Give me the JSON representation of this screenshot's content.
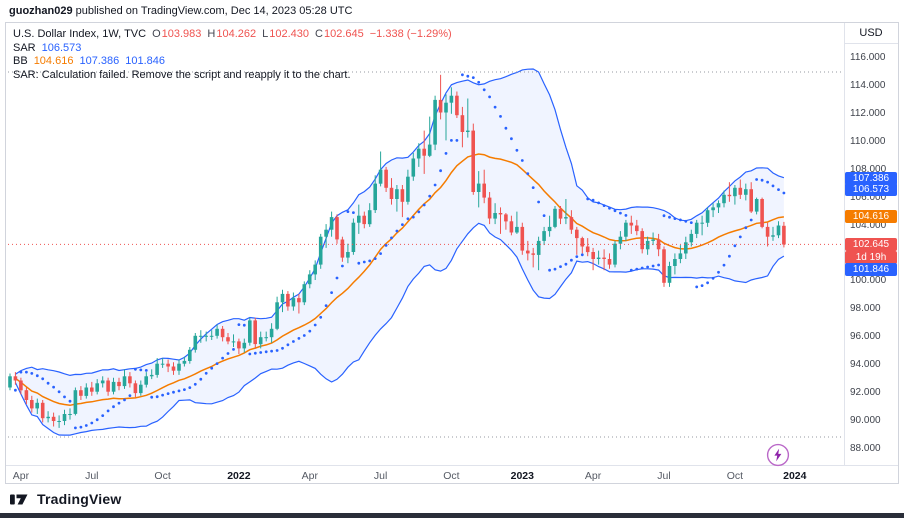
{
  "header": {
    "author": "guozhan029",
    "rest": " published on TradingView.com, Dec 14, 2023 05:28 UTC"
  },
  "legend": {
    "symbol": "U.S. Dollar Index, 1W, TVC",
    "o_label": "O",
    "o": "103.983",
    "h_label": "H",
    "h": "104.262",
    "l_label": "L",
    "l": "102.430",
    "c_label": "C",
    "c": "102.645",
    "change": "−1.338 (−1.29%)",
    "sar_label": "SAR",
    "sar_value": "106.573",
    "bb_label": "BB",
    "bb_basis": "104.616",
    "bb_upper": "107.386",
    "bb_lower": "101.846",
    "error": "SAR: Calculation failed. Remove the script and reapply it to the chart."
  },
  "price_axis": {
    "currency": "USD",
    "ticks": [
      "116.000",
      "114.000",
      "112.000",
      "110.000",
      "108.000",
      "106.000",
      "104.000",
      "102.000",
      "100.000",
      "98.000",
      "96.000",
      "94.000",
      "92.000",
      "90.000",
      "88.000"
    ],
    "badges": [
      {
        "text": "107.386",
        "price": 107.386,
        "color": "#2962ff"
      },
      {
        "text": "106.573",
        "price": 106.573,
        "color": "#2962ff"
      },
      {
        "text": "104.616",
        "price": 104.616,
        "color": "#f57c00"
      },
      {
        "text": "102.645",
        "price": 102.645,
        "color": "#ef5350"
      },
      {
        "text": "1d 19h",
        "attach": "below",
        "color": "#ef5350"
      },
      {
        "text": "101.846",
        "price": 101.846,
        "color": "#2962ff",
        "nudge": 14
      }
    ]
  },
  "footer": {
    "brand": "TradingView"
  },
  "colors": {
    "up": "#26a69a",
    "down": "#ef5350",
    "band": "#2962ff",
    "band_fill_opacity": 0.07,
    "basis": "#f57c00",
    "sar_dots": "#2962ff",
    "current_line": "#ef5350",
    "guide": "#9598a1"
  },
  "chart_data": {
    "type": "candlestick",
    "title": "U.S. Dollar Index, 1W, TVC",
    "symbol": "U.S. Dollar Index",
    "timeframe": "1W",
    "exchange": "TVC",
    "currency": "USD",
    "ylim": [
      88,
      116
    ],
    "current_price": 102.645,
    "countdown": "1d 19h",
    "indicators": {
      "bollinger": {
        "period": 20,
        "stddev": 2,
        "basis_last": 104.616,
        "upper_last": 107.386,
        "lower_last": 101.846
      },
      "sar": {
        "last": 106.573,
        "status": "calculation failed"
      }
    },
    "dotted_guides": [
      115.0,
      88.85
    ],
    "x_labels": [
      {
        "t": "Apr",
        "i": 2
      },
      {
        "t": "Jul",
        "i": 15
      },
      {
        "t": "Oct",
        "i": 28
      },
      {
        "t": "2022",
        "i": 42,
        "bold": true
      },
      {
        "t": "Apr",
        "i": 55
      },
      {
        "t": "Jul",
        "i": 68
      },
      {
        "t": "Oct",
        "i": 81
      },
      {
        "t": "2023",
        "i": 94,
        "bold": true
      },
      {
        "t": "Apr",
        "i": 107
      },
      {
        "t": "Jul",
        "i": 120
      },
      {
        "t": "Oct",
        "i": 133
      },
      {
        "t": "2024",
        "i": 144,
        "bold": true
      }
    ],
    "ohlc": [
      [
        92.4,
        93.4,
        92.2,
        93.2
      ],
      [
        93.2,
        93.5,
        92.6,
        92.9
      ],
      [
        92.9,
        93.1,
        91.9,
        92.2
      ],
      [
        92.2,
        92.4,
        91.2,
        91.5
      ],
      [
        91.5,
        91.8,
        90.6,
        90.9
      ],
      [
        90.9,
        91.6,
        90.5,
        91.3
      ],
      [
        91.3,
        91.5,
        89.9,
        90.2
      ],
      [
        90.2,
        90.7,
        89.9,
        90.3
      ],
      [
        90.3,
        90.6,
        89.6,
        90.0
      ],
      [
        90.0,
        90.4,
        89.5,
        90.0
      ],
      [
        90.0,
        90.8,
        89.7,
        90.5
      ],
      [
        90.5,
        90.9,
        90.1,
        90.5
      ],
      [
        90.5,
        92.4,
        90.4,
        92.2
      ],
      [
        92.2,
        92.5,
        91.5,
        91.8
      ],
      [
        91.8,
        92.7,
        91.6,
        92.4
      ],
      [
        92.4,
        92.8,
        91.8,
        92.1
      ],
      [
        92.1,
        93.0,
        91.9,
        92.7
      ],
      [
        92.7,
        93.2,
        92.4,
        92.9
      ],
      [
        92.9,
        93.1,
        91.8,
        92.1
      ],
      [
        92.1,
        93.1,
        91.9,
        92.8
      ],
      [
        92.8,
        93.1,
        92.2,
        92.5
      ],
      [
        92.5,
        93.7,
        92.3,
        93.2
      ],
      [
        93.2,
        93.5,
        92.4,
        92.7
      ],
      [
        92.7,
        92.9,
        91.7,
        92.0
      ],
      [
        92.0,
        92.9,
        91.8,
        92.6
      ],
      [
        92.6,
        93.5,
        92.4,
        93.2
      ],
      [
        93.2,
        93.7,
        93.0,
        93.3
      ],
      [
        93.3,
        94.5,
        93.1,
        94.1
      ],
      [
        94.1,
        94.5,
        93.8,
        94.1
      ],
      [
        94.1,
        94.4,
        93.5,
        93.9
      ],
      [
        93.9,
        94.2,
        93.3,
        93.6
      ],
      [
        93.6,
        94.4,
        93.3,
        94.1
      ],
      [
        94.1,
        94.6,
        93.9,
        94.3
      ],
      [
        94.3,
        95.3,
        94.1,
        95.1
      ],
      [
        95.1,
        96.3,
        94.9,
        96.1
      ],
      [
        96.1,
        96.5,
        95.6,
        96.1
      ],
      [
        96.1,
        96.4,
        95.7,
        96.1
      ],
      [
        96.1,
        96.5,
        95.8,
        96.1
      ],
      [
        96.1,
        96.9,
        95.9,
        96.6
      ],
      [
        96.6,
        96.8,
        95.7,
        96.0
      ],
      [
        96.0,
        96.3,
        95.5,
        95.7
      ],
      [
        95.7,
        96.2,
        95.3,
        95.7
      ],
      [
        95.7,
        95.9,
        94.8,
        95.2
      ],
      [
        95.2,
        95.9,
        94.9,
        95.6
      ],
      [
        95.6,
        97.4,
        95.4,
        97.2
      ],
      [
        97.2,
        97.4,
        95.2,
        95.5
      ],
      [
        95.5,
        96.4,
        95.2,
        96.0
      ],
      [
        96.0,
        96.4,
        95.7,
        96.0
      ],
      [
        96.0,
        97.0,
        95.6,
        96.6
      ],
      [
        96.6,
        98.9,
        96.5,
        98.5
      ],
      [
        98.5,
        99.4,
        97.8,
        99.1
      ],
      [
        99.1,
        99.3,
        97.9,
        98.2
      ],
      [
        98.2,
        99.2,
        97.9,
        98.8
      ],
      [
        98.8,
        99.1,
        97.7,
        98.5
      ],
      [
        98.5,
        100.0,
        98.3,
        99.8
      ],
      [
        99.8,
        100.8,
        99.5,
        100.5
      ],
      [
        100.5,
        101.5,
        100.1,
        101.2
      ],
      [
        101.2,
        103.4,
        100.9,
        103.2
      ],
      [
        103.2,
        104.1,
        102.4,
        103.7
      ],
      [
        103.7,
        105.0,
        103.2,
        104.6
      ],
      [
        104.6,
        104.8,
        102.7,
        103.0
      ],
      [
        103.0,
        103.2,
        101.4,
        101.7
      ],
      [
        101.7,
        102.7,
        101.3,
        102.1
      ],
      [
        102.1,
        104.5,
        101.9,
        104.2
      ],
      [
        104.2,
        105.5,
        103.4,
        104.7
      ],
      [
        104.7,
        105.0,
        103.8,
        104.1
      ],
      [
        104.1,
        105.6,
        103.9,
        105.1
      ],
      [
        105.1,
        107.6,
        104.9,
        107.0
      ],
      [
        107.0,
        109.3,
        106.8,
        108.0
      ],
      [
        108.0,
        108.2,
        106.4,
        106.7
      ],
      [
        106.7,
        107.4,
        105.5,
        105.9
      ],
      [
        105.9,
        106.9,
        105.0,
        106.6
      ],
      [
        106.6,
        106.9,
        104.6,
        105.7
      ],
      [
        105.7,
        108.0,
        105.5,
        107.5
      ],
      [
        107.5,
        109.2,
        107.2,
        108.8
      ],
      [
        108.8,
        109.9,
        108.2,
        109.5
      ],
      [
        109.5,
        110.8,
        107.7,
        109.0
      ],
      [
        109.0,
        111.8,
        108.9,
        109.8
      ],
      [
        109.8,
        113.3,
        109.4,
        113.0
      ],
      [
        113.0,
        114.8,
        111.6,
        112.1
      ],
      [
        112.1,
        113.4,
        110.1,
        112.8
      ],
      [
        112.8,
        113.9,
        112.0,
        113.3
      ],
      [
        113.3,
        113.6,
        111.7,
        111.9
      ],
      [
        111.9,
        112.5,
        109.6,
        110.7
      ],
      [
        110.7,
        113.1,
        110.3,
        110.8
      ],
      [
        110.8,
        111.3,
        106.2,
        106.4
      ],
      [
        106.4,
        107.9,
        105.3,
        107.0
      ],
      [
        107.0,
        108.0,
        105.6,
        106.0
      ],
      [
        106.0,
        106.4,
        104.1,
        104.5
      ],
      [
        104.5,
        105.6,
        104.1,
        104.9
      ],
      [
        104.9,
        105.3,
        103.4,
        104.8
      ],
      [
        104.8,
        104.9,
        103.7,
        104.3
      ],
      [
        104.3,
        104.7,
        103.3,
        103.5
      ],
      [
        103.5,
        105.0,
        103.4,
        103.9
      ],
      [
        103.9,
        104.2,
        101.9,
        102.2
      ],
      [
        102.2,
        102.9,
        101.5,
        102.0
      ],
      [
        102.0,
        102.4,
        101.0,
        101.9
      ],
      [
        101.9,
        103.2,
        100.8,
        102.9
      ],
      [
        102.9,
        103.9,
        102.6,
        103.6
      ],
      [
        103.6,
        104.7,
        103.2,
        103.9
      ],
      [
        103.9,
        105.4,
        103.8,
        105.2
      ],
      [
        105.2,
        105.4,
        104.1,
        104.5
      ],
      [
        104.5,
        105.9,
        104.1,
        104.6
      ],
      [
        104.6,
        105.1,
        103.4,
        103.7
      ],
      [
        103.7,
        103.9,
        101.9,
        103.1
      ],
      [
        103.1,
        103.2,
        102.0,
        102.5
      ],
      [
        102.5,
        103.1,
        101.8,
        102.1
      ],
      [
        102.1,
        102.4,
        100.8,
        101.6
      ],
      [
        101.6,
        102.2,
        101.2,
        101.7
      ],
      [
        101.7,
        102.3,
        100.8,
        101.6
      ],
      [
        101.6,
        102.0,
        100.9,
        101.2
      ],
      [
        101.2,
        102.9,
        101.0,
        102.7
      ],
      [
        102.7,
        103.6,
        102.3,
        103.2
      ],
      [
        103.2,
        104.4,
        102.9,
        104.2
      ],
      [
        104.2,
        104.7,
        103.4,
        104.0
      ],
      [
        104.0,
        104.4,
        103.3,
        103.6
      ],
      [
        103.6,
        103.8,
        102.0,
        102.3
      ],
      [
        102.3,
        103.2,
        101.9,
        102.9
      ],
      [
        102.9,
        103.5,
        102.6,
        103.0
      ],
      [
        103.0,
        103.4,
        101.8,
        102.3
      ],
      [
        102.3,
        102.5,
        99.6,
        99.9
      ],
      [
        99.9,
        101.4,
        99.6,
        101.1
      ],
      [
        101.1,
        102.0,
        100.5,
        101.6
      ],
      [
        101.6,
        102.6,
        101.3,
        102.0
      ],
      [
        102.0,
        103.2,
        101.6,
        102.8
      ],
      [
        102.8,
        103.7,
        102.5,
        103.4
      ],
      [
        103.4,
        104.4,
        103.1,
        104.2
      ],
      [
        104.2,
        104.7,
        103.3,
        104.2
      ],
      [
        104.2,
        105.3,
        103.9,
        105.1
      ],
      [
        105.1,
        105.6,
        104.6,
        105.3
      ],
      [
        105.3,
        105.8,
        104.9,
        105.6
      ],
      [
        105.6,
        106.5,
        105.3,
        106.2
      ],
      [
        106.2,
        107.1,
        105.7,
        106.1
      ],
      [
        106.1,
        106.9,
        105.5,
        106.7
      ],
      [
        106.7,
        107.3,
        105.9,
        106.2
      ],
      [
        106.2,
        107.0,
        105.8,
        106.6
      ],
      [
        106.6,
        107.1,
        104.9,
        105.0
      ],
      [
        105.0,
        106.0,
        104.8,
        105.9
      ],
      [
        105.9,
        106.0,
        103.8,
        103.9
      ],
      [
        103.9,
        104.2,
        102.5,
        103.2
      ],
      [
        103.2,
        103.9,
        102.9,
        103.3
      ],
      [
        103.3,
        104.3,
        103.1,
        104.0
      ],
      [
        103.983,
        104.262,
        102.43,
        102.645
      ]
    ]
  }
}
